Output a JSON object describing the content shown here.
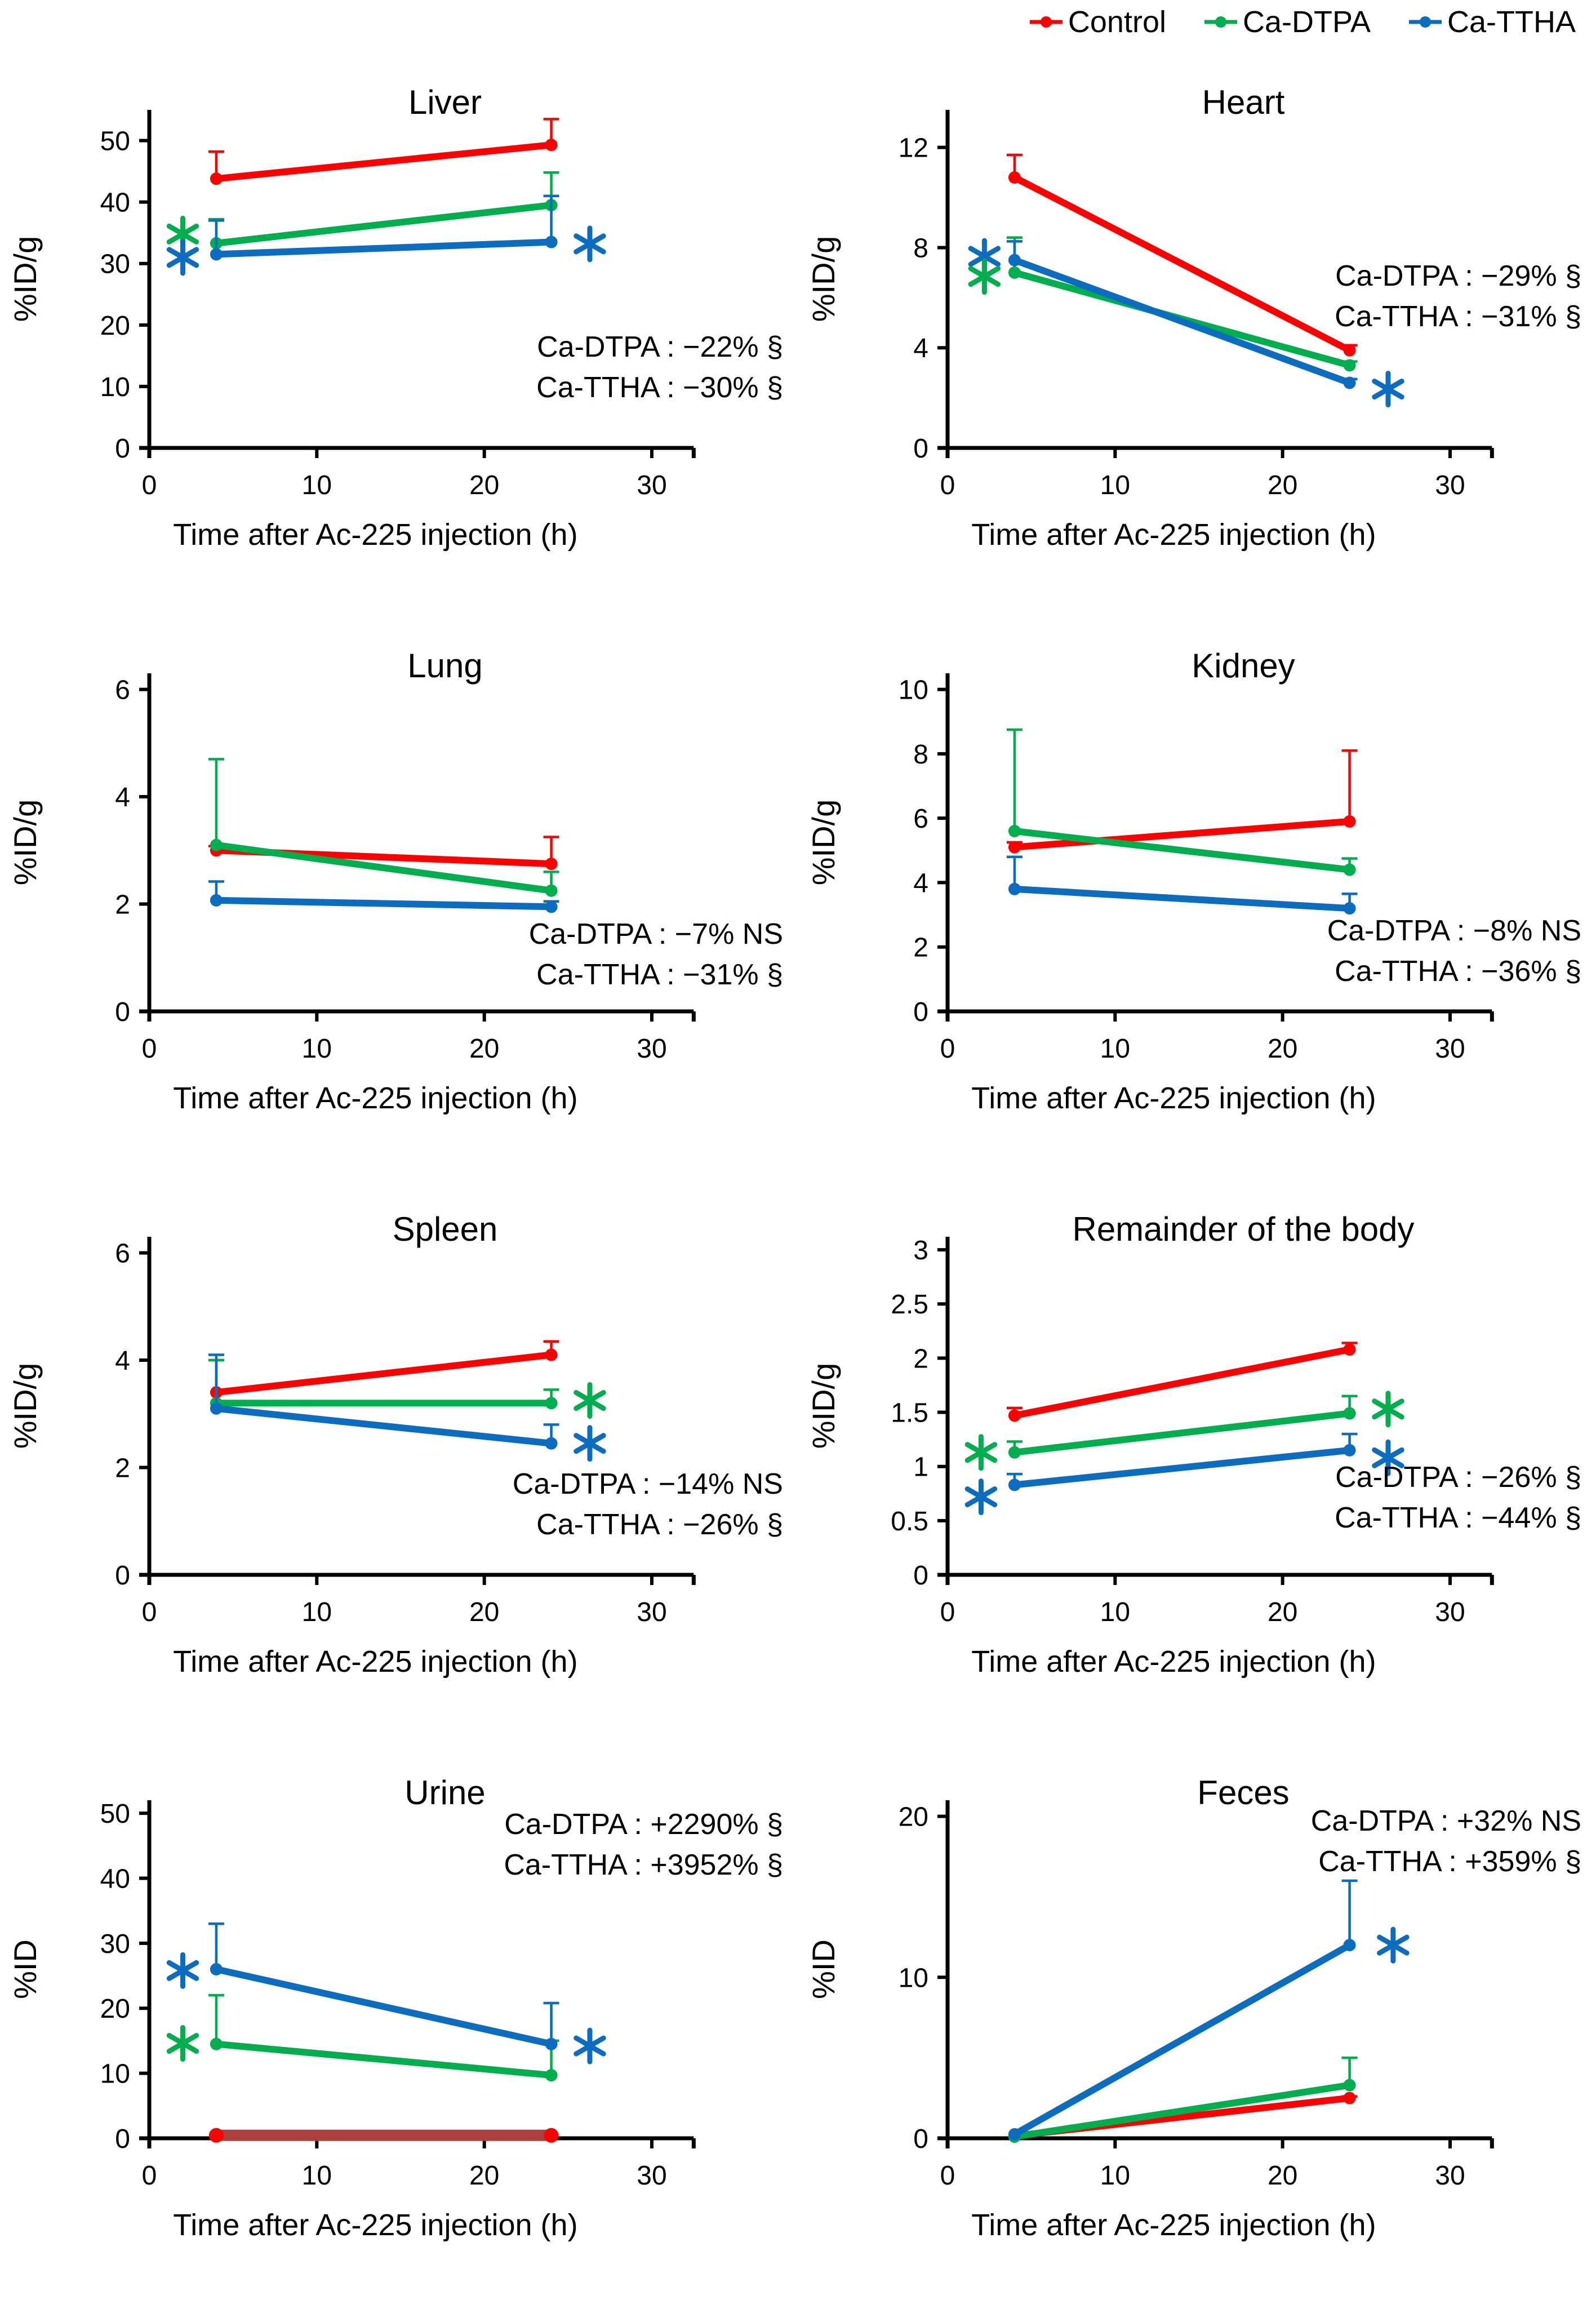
{
  "legend": {
    "items": [
      {
        "label": "Control",
        "color": "#FF0000"
      },
      {
        "label": "Ca-DTPA",
        "color": "#00AE4D"
      },
      {
        "label": "Ca-TTHA",
        "color": "#0C6CBF"
      }
    ]
  },
  "chart_data": [
    {
      "id": "liver",
      "type": "line",
      "title": "Liver",
      "ylabel": "%ID/g",
      "xlabel": "Time after Ac-225 injection (h)",
      "x": [
        4,
        24
      ],
      "xticks": [
        0,
        10,
        20,
        30
      ],
      "xmax": 35,
      "axis_end": 32.5,
      "yticks": [
        0,
        10,
        20,
        30,
        40,
        50
      ],
      "ymax": 55,
      "series": [
        {
          "name": "Control",
          "color": "#FF0000",
          "values": [
            43.8,
            49.3
          ],
          "err_up": [
            4.4,
            4.2
          ]
        },
        {
          "name": "Ca-DTPA",
          "color": "#00AE4D",
          "values": [
            33.3,
            39.5
          ],
          "err_up": [
            3.9,
            5.3
          ]
        },
        {
          "name": "Ca-TTHA",
          "color": "#0C6CBF",
          "values": [
            31.5,
            33.5
          ],
          "err_up": [
            5.5,
            7.5
          ]
        }
      ],
      "stats": [
        "Ca-DTPA : −22% §",
        "Ca-TTHA : −30% §"
      ],
      "stats_fy": 0.73,
      "stars": [
        {
          "color": "#00AE4D",
          "x": 2.0,
          "y": 34.8
        },
        {
          "color": "#0C6CBF",
          "x": 2.0,
          "y": 31.0
        },
        {
          "color": "#0C6CBF",
          "x": 26.3,
          "y": 33.2
        }
      ]
    },
    {
      "id": "heart",
      "type": "line",
      "title": "Heart",
      "ylabel": "%ID/g",
      "xlabel": "Time after Ac-225 injection (h)",
      "x": [
        4,
        24
      ],
      "xticks": [
        0,
        10,
        20,
        30
      ],
      "xmax": 35,
      "axis_end": 32.5,
      "yticks": [
        0,
        4,
        8,
        12
      ],
      "ymax": 13.5,
      "series": [
        {
          "name": "Control",
          "color": "#FF0000",
          "values": [
            10.8,
            3.9
          ],
          "err_up": [
            0.9,
            0.2
          ]
        },
        {
          "name": "Ca-DTPA",
          "color": "#00AE4D",
          "values": [
            7.0,
            3.3
          ],
          "err_up": [
            1.4,
            0.15
          ]
        },
        {
          "name": "Ca-TTHA",
          "color": "#0C6CBF",
          "values": [
            7.5,
            2.6
          ],
          "err_up": [
            0.75,
            0.15
          ]
        }
      ],
      "stats": [
        "Ca-DTPA : −29% §",
        "Ca-TTHA : −31% §"
      ],
      "stats_fy": 0.52,
      "stars": [
        {
          "color": "#0C6CBF",
          "x": 2.2,
          "y": 7.65
        },
        {
          "color": "#00AE4D",
          "x": 2.2,
          "y": 6.85
        },
        {
          "color": "#0C6CBF",
          "x": 26.3,
          "y": 2.35
        }
      ]
    },
    {
      "id": "lung",
      "type": "line",
      "title": "Lung",
      "ylabel": "%ID/g",
      "xlabel": "Time after Ac-225 injection (h)",
      "x": [
        4,
        24
      ],
      "xticks": [
        0,
        10,
        20,
        30
      ],
      "xmax": 35,
      "axis_end": 32.5,
      "yticks": [
        0,
        2,
        4,
        6
      ],
      "ymax": 6.3,
      "series": [
        {
          "name": "Control",
          "color": "#FF0000",
          "values": [
            3.0,
            2.75
          ],
          "err_up": [
            0.08,
            0.5
          ]
        },
        {
          "name": "Ca-DTPA",
          "color": "#00AE4D",
          "values": [
            3.1,
            2.25
          ],
          "err_up": [
            1.6,
            0.35
          ]
        },
        {
          "name": "Ca-TTHA",
          "color": "#0C6CBF",
          "values": [
            2.07,
            1.95
          ],
          "err_up": [
            0.35,
            0.1
          ]
        }
      ],
      "stats": [
        "Ca-DTPA : −7% NS",
        "Ca-TTHA : −31% §"
      ],
      "stats_fy": 0.8,
      "stars": []
    },
    {
      "id": "kidney",
      "type": "line",
      "title": "Kidney",
      "ylabel": "%ID/g",
      "xlabel": "Time after Ac-225 injection (h)",
      "x": [
        4,
        24
      ],
      "xticks": [
        0,
        10,
        20,
        30
      ],
      "xmax": 35,
      "axis_end": 32.5,
      "yticks": [
        0,
        2,
        4,
        6,
        8,
        10
      ],
      "ymax": 10.5,
      "series": [
        {
          "name": "Control",
          "color": "#FF0000",
          "values": [
            5.1,
            5.9
          ],
          "err_up": [
            0.15,
            2.2
          ]
        },
        {
          "name": "Ca-DTPA",
          "color": "#00AE4D",
          "values": [
            5.6,
            4.4
          ],
          "err_up": [
            3.15,
            0.35
          ]
        },
        {
          "name": "Ca-TTHA",
          "color": "#0C6CBF",
          "values": [
            3.8,
            3.2
          ],
          "err_up": [
            1.0,
            0.45
          ]
        }
      ],
      "stats": [
        "Ca-DTPA : −8% NS",
        "Ca-TTHA : −36% §"
      ],
      "stats_fy": 0.79,
      "stars": []
    },
    {
      "id": "spleen",
      "type": "line",
      "title": "Spleen",
      "ylabel": "%ID/g",
      "xlabel": "Time after Ac-225 injection (h)",
      "x": [
        4,
        24
      ],
      "xticks": [
        0,
        10,
        20,
        30
      ],
      "xmax": 35,
      "axis_end": 32.5,
      "yticks": [
        0,
        2,
        4,
        6
      ],
      "ymax": 6.3,
      "series": [
        {
          "name": "Control",
          "color": "#FF0000",
          "values": [
            3.4,
            4.1
          ],
          "err_up": [
            0.6,
            0.25
          ]
        },
        {
          "name": "Ca-DTPA",
          "color": "#00AE4D",
          "values": [
            3.2,
            3.2
          ],
          "err_up": [
            0.8,
            0.25
          ]
        },
        {
          "name": "Ca-TTHA",
          "color": "#0C6CBF",
          "values": [
            3.1,
            2.45
          ],
          "err_up": [
            1.0,
            0.35
          ]
        }
      ],
      "stats": [
        "Ca-DTPA : −14% NS",
        "Ca-TTHA : −26% §"
      ],
      "stats_fy": 0.76,
      "stars": [
        {
          "color": "#00AE4D",
          "x": 26.3,
          "y": 3.25
        },
        {
          "color": "#0C6CBF",
          "x": 26.3,
          "y": 2.45
        }
      ]
    },
    {
      "id": "remainder",
      "type": "line",
      "title": "Remainder of the body",
      "ylabel": "%ID/g",
      "xlabel": "Time after Ac-225 injection (h)",
      "x": [
        4,
        24
      ],
      "xticks": [
        0,
        10,
        20,
        30
      ],
      "xmax": 35,
      "axis_end": 32.5,
      "yticks": [
        0,
        0.5,
        1,
        1.5,
        2,
        2.5,
        3
      ],
      "ymax": 3.12,
      "series": [
        {
          "name": "Control",
          "color": "#FF0000",
          "values": [
            1.47,
            2.08
          ],
          "err_up": [
            0.07,
            0.06
          ]
        },
        {
          "name": "Ca-DTPA",
          "color": "#00AE4D",
          "values": [
            1.13,
            1.49
          ],
          "err_up": [
            0.1,
            0.16
          ]
        },
        {
          "name": "Ca-TTHA",
          "color": "#0C6CBF",
          "values": [
            0.83,
            1.15
          ],
          "err_up": [
            0.1,
            0.15
          ]
        }
      ],
      "stats": [
        "Ca-DTPA : −26% §",
        "Ca-TTHA : −44% §"
      ],
      "stats_fy": 0.74,
      "stars": [
        {
          "color": "#00AE4D",
          "x": 2.0,
          "y": 1.13
        },
        {
          "color": "#0C6CBF",
          "x": 2.0,
          "y": 0.72
        },
        {
          "color": "#00AE4D",
          "x": 26.3,
          "y": 1.53
        },
        {
          "color": "#0C6CBF",
          "x": 26.3,
          "y": 1.08
        }
      ]
    },
    {
      "id": "urine",
      "type": "line",
      "title": "Urine",
      "ylabel": "%ID",
      "xlabel": "Time after Ac-225 injection (h)",
      "x": [
        4,
        24
      ],
      "xticks": [
        0,
        10,
        20,
        30
      ],
      "xmax": 35,
      "axis_end": 32.5,
      "yticks": [
        0,
        10,
        20,
        30,
        40,
        50
      ],
      "ymax": 52,
      "series": [
        {
          "name": "Control",
          "color": "#FF0000",
          "line_color": "#AE3F3F",
          "thick": true,
          "values": [
            0.45,
            0.45
          ],
          "err_up": [
            0,
            0
          ]
        },
        {
          "name": "Ca-DTPA",
          "color": "#00AE4D",
          "values": [
            14.5,
            9.7
          ],
          "err_up": [
            7.5,
            5.3
          ]
        },
        {
          "name": "Ca-TTHA",
          "color": "#0C6CBF",
          "values": [
            26.0,
            14.5
          ],
          "err_up": [
            7.0,
            6.3
          ]
        }
      ],
      "stats": [
        "Ca-DTPA : +2290% §",
        "Ca-TTHA : +3952% §"
      ],
      "stats_fy": 0.1,
      "stars": [
        {
          "color": "#0C6CBF",
          "x": 2.0,
          "y": 25.8
        },
        {
          "color": "#00AE4D",
          "x": 2.0,
          "y": 14.6
        },
        {
          "color": "#0C6CBF",
          "x": 26.3,
          "y": 14.2
        }
      ]
    },
    {
      "id": "feces",
      "type": "line",
      "title": "Feces",
      "ylabel": "%ID",
      "xlabel": "Time after Ac-225 injection (h)",
      "x": [
        4,
        24
      ],
      "xticks": [
        0,
        10,
        20,
        30
      ],
      "xmax": 35,
      "axis_end": 32.5,
      "yticks": [
        0,
        10,
        20
      ],
      "ymax": 21,
      "series": [
        {
          "name": "Control",
          "color": "#FF0000",
          "values": [
            0.15,
            2.5
          ],
          "err_up": [
            0,
            0.1
          ]
        },
        {
          "name": "Ca-DTPA",
          "color": "#00AE4D",
          "values": [
            0.1,
            3.3
          ],
          "err_up": [
            0,
            1.7
          ]
        },
        {
          "name": "Ca-TTHA",
          "color": "#0C6CBF",
          "values": [
            0.25,
            12.0
          ],
          "err_up": [
            0,
            4.0
          ]
        }
      ],
      "stats": [
        "Ca-DTPA : +32% NS",
        "Ca-TTHA : +359% §"
      ],
      "stats_fy": 0.09,
      "stars": [
        {
          "color": "#0C6CBF",
          "x": 26.6,
          "y": 12.0
        }
      ]
    }
  ]
}
